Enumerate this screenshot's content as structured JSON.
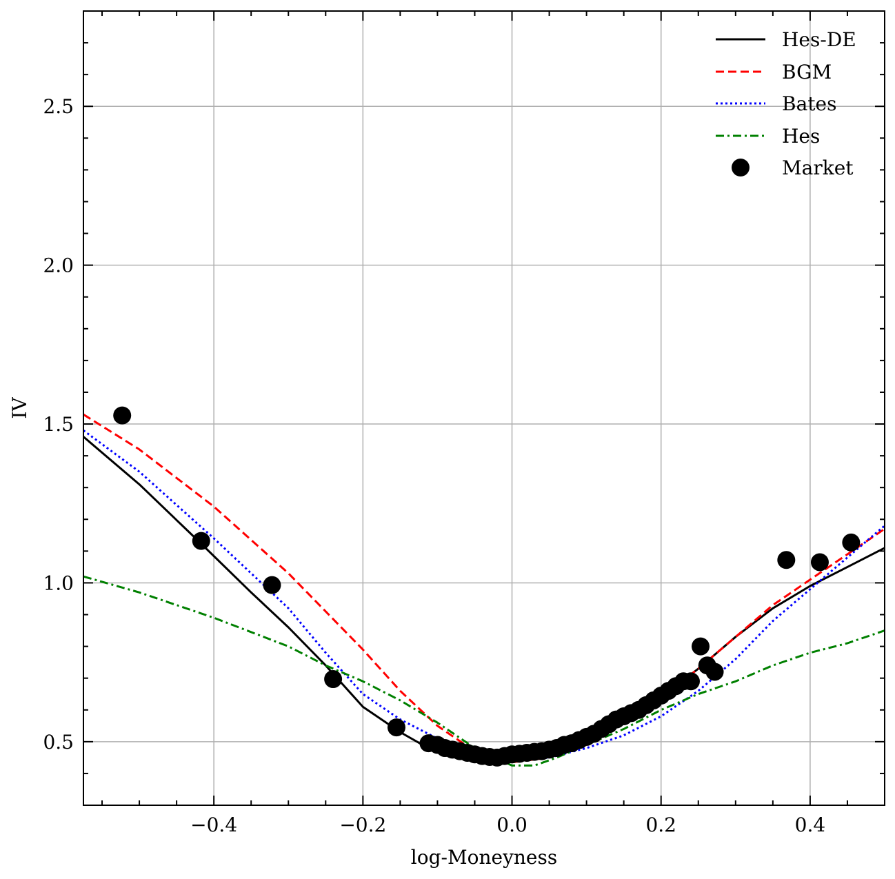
{
  "chart_data": {
    "type": "line",
    "title": "",
    "xlabel": "log-Moneyness",
    "ylabel": "IV",
    "xlim": [
      -0.575,
      0.5
    ],
    "ylim": [
      0.3,
      2.8
    ],
    "grid": true,
    "legend_position": "top-right",
    "x_ticks": [
      -0.4,
      -0.2,
      0.0,
      0.2,
      0.4
    ],
    "x_tick_labels": [
      "−0.4",
      "−0.2",
      "0.0",
      "0.2",
      "0.4"
    ],
    "y_ticks": [
      0.5,
      1.0,
      1.5,
      2.0,
      2.5
    ],
    "y_tick_labels": [
      "0.5",
      "1.0",
      "1.5",
      "2.0",
      "2.5"
    ],
    "series": [
      {
        "name": "Hes-DE",
        "color": "#000000",
        "style": "solid",
        "x": [
          -0.575,
          -0.5,
          -0.42,
          -0.35,
          -0.3,
          -0.25,
          -0.2,
          -0.15,
          -0.12,
          -0.1,
          -0.05,
          0.0,
          0.03,
          0.06,
          0.09,
          0.12,
          0.15,
          0.2,
          0.25,
          0.3,
          0.35,
          0.4,
          0.45,
          0.5
        ],
        "y": [
          1.46,
          1.31,
          1.13,
          0.97,
          0.86,
          0.74,
          0.61,
          0.53,
          0.49,
          0.47,
          0.455,
          0.455,
          0.46,
          0.47,
          0.49,
          0.52,
          0.57,
          0.64,
          0.73,
          0.83,
          0.92,
          0.99,
          1.05,
          1.11
        ]
      },
      {
        "name": "BGM",
        "color": "#ff0000",
        "style": "dashed",
        "x": [
          -0.575,
          -0.5,
          -0.4,
          -0.3,
          -0.2,
          -0.15,
          -0.1,
          -0.05,
          0.0,
          0.05,
          0.1,
          0.15,
          0.2,
          0.25,
          0.3,
          0.35,
          0.4,
          0.45,
          0.5
        ],
        "y": [
          1.53,
          1.42,
          1.24,
          1.03,
          0.79,
          0.66,
          0.55,
          0.47,
          0.435,
          0.45,
          0.49,
          0.56,
          0.64,
          0.73,
          0.83,
          0.93,
          1.01,
          1.09,
          1.17
        ]
      },
      {
        "name": "Bates",
        "color": "#0000ff",
        "style": "dotted",
        "x": [
          -0.575,
          -0.5,
          -0.4,
          -0.3,
          -0.25,
          -0.2,
          -0.15,
          -0.1,
          -0.05,
          0.0,
          0.05,
          0.1,
          0.15,
          0.2,
          0.25,
          0.3,
          0.35,
          0.4,
          0.45,
          0.5
        ],
        "y": [
          1.48,
          1.35,
          1.14,
          0.92,
          0.78,
          0.65,
          0.57,
          0.51,
          0.46,
          0.44,
          0.45,
          0.48,
          0.52,
          0.58,
          0.66,
          0.76,
          0.88,
          0.98,
          1.08,
          1.18
        ]
      },
      {
        "name": "Hes",
        "color": "#008000",
        "style": "dashdot",
        "x": [
          -0.575,
          -0.5,
          -0.4,
          -0.3,
          -0.25,
          -0.2,
          -0.15,
          -0.1,
          -0.05,
          0.0,
          0.03,
          0.06,
          0.1,
          0.15,
          0.2,
          0.25,
          0.3,
          0.35,
          0.4,
          0.45,
          0.5
        ],
        "y": [
          1.02,
          0.97,
          0.89,
          0.8,
          0.74,
          0.69,
          0.63,
          0.56,
          0.48,
          0.425,
          0.425,
          0.45,
          0.49,
          0.54,
          0.6,
          0.65,
          0.69,
          0.74,
          0.78,
          0.81,
          0.85
        ]
      }
    ],
    "scatter": {
      "name": "Market",
      "color": "#000000",
      "x": [
        -0.523,
        -0.417,
        -0.322,
        -0.24,
        -0.155,
        -0.112,
        -0.1,
        -0.09,
        -0.08,
        -0.07,
        -0.06,
        -0.05,
        -0.04,
        -0.03,
        -0.02,
        -0.01,
        0.0,
        0.01,
        0.02,
        0.03,
        0.04,
        0.05,
        0.06,
        0.07,
        0.08,
        0.09,
        0.1,
        0.11,
        0.12,
        0.13,
        0.14,
        0.15,
        0.16,
        0.17,
        0.18,
        0.19,
        0.2,
        0.21,
        0.22,
        0.23,
        0.24,
        0.253,
        0.262,
        0.272,
        0.368,
        0.413,
        0.455
      ],
      "y": [
        1.527,
        1.132,
        0.993,
        0.697,
        0.545,
        0.495,
        0.49,
        0.48,
        0.475,
        0.47,
        0.465,
        0.46,
        0.455,
        0.452,
        0.45,
        0.455,
        0.46,
        0.462,
        0.465,
        0.468,
        0.47,
        0.475,
        0.48,
        0.49,
        0.495,
        0.505,
        0.515,
        0.525,
        0.54,
        0.555,
        0.57,
        0.58,
        0.59,
        0.6,
        0.615,
        0.63,
        0.645,
        0.66,
        0.675,
        0.69,
        0.69,
        0.8,
        0.74,
        0.72,
        1.072,
        1.065,
        1.127
      ]
    }
  }
}
